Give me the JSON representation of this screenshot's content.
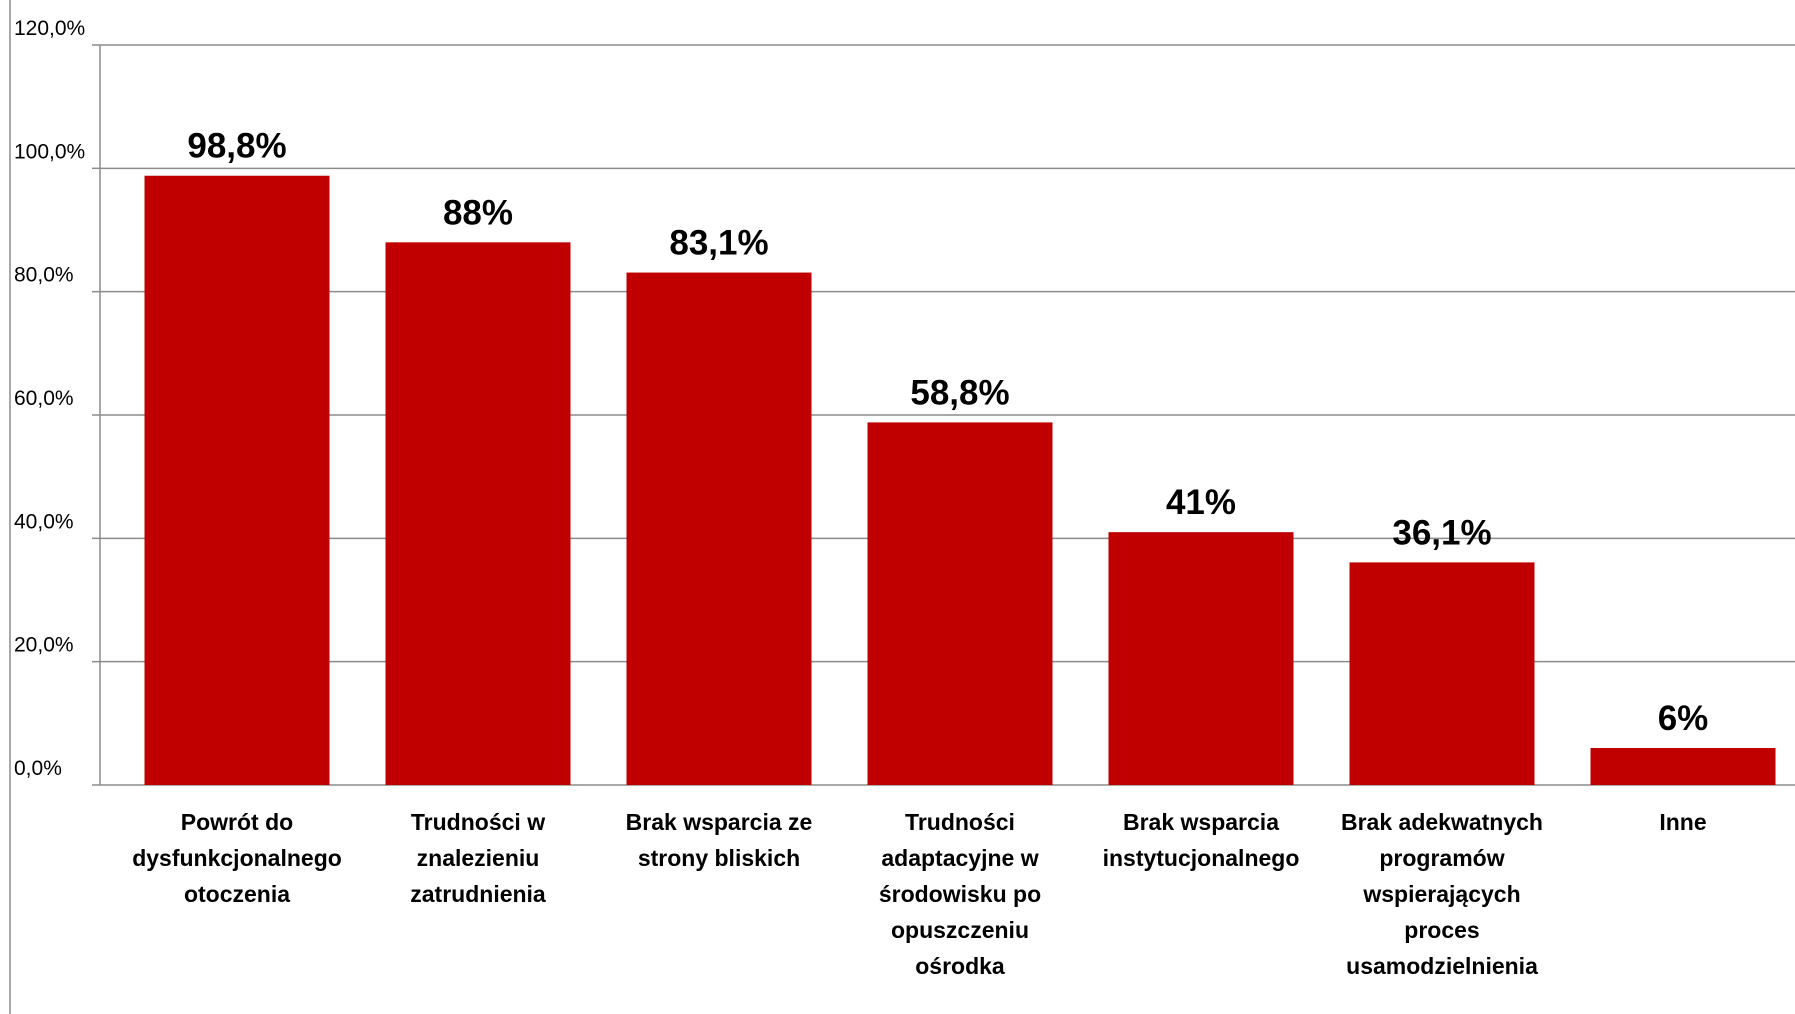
{
  "chart_data": {
    "type": "bar",
    "categories": [
      [
        "Powrót do",
        "dysfunkcjonalnego",
        "otoczenia"
      ],
      [
        "Trudności w",
        "znalezieniu",
        "zatrudnienia"
      ],
      [
        "Brak wsparcia ze",
        "strony bliskich"
      ],
      [
        "Trudności",
        "adaptacyjne w",
        "środowisku po",
        "opuszczeniu",
        "ośrodka"
      ],
      [
        "Brak wsparcia",
        "instytucjonalnego"
      ],
      [
        "Brak adekwatnych",
        "programów",
        "wspierających",
        "proces",
        "usamodzielnienia"
      ],
      [
        "Inne"
      ]
    ],
    "values": [
      98.8,
      88,
      83.1,
      58.8,
      41,
      36.1,
      6
    ],
    "value_labels": [
      "98,8%",
      "88%",
      "83,1%",
      "58,8%",
      "41%",
      "36,1%",
      "6%"
    ],
    "y_ticks": [
      0,
      20,
      40,
      60,
      80,
      100,
      120
    ],
    "y_tick_labels": [
      "0,0%",
      "20,0%",
      "40,0%",
      "60,0%",
      "80,0%",
      "100,0%",
      "120,0%"
    ],
    "ylim": [
      0,
      120
    ],
    "grid": true,
    "legend": "none",
    "bar_color": "#c00000"
  }
}
